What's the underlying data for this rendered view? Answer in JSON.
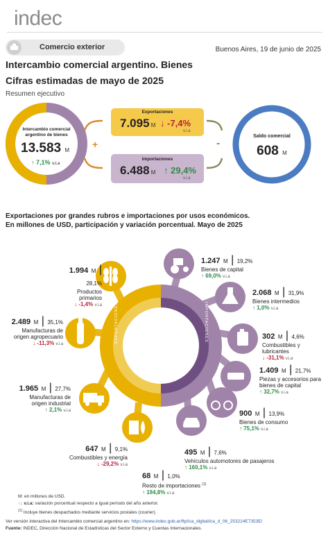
{
  "header": {
    "logo": "indec",
    "badge": "Comercio exterior",
    "date": "Buenos Aires, 19 de junio de 2025"
  },
  "report": {
    "title": "Intercambio comercial argentino. Bienes",
    "subtitle": "Cifras estimadas de mayo de 2025",
    "summary_label": "Resumen ejecutivo"
  },
  "summary": {
    "intercambio": {
      "label_1": "Intercambio comercial",
      "label_2": "argentino de bienes",
      "value": "13.583",
      "unit": "M",
      "change": "7,1%",
      "change_unit": "v.i.a"
    },
    "exportaciones": {
      "label": "Exportaciones",
      "value": "7.095",
      "unit": "M",
      "change": "-7,4%",
      "change_unit": "v.i.a"
    },
    "importaciones": {
      "label": "Importaciones",
      "value": "6.488",
      "unit": "M",
      "change": "29,4%",
      "change_unit": "v.i.a"
    },
    "saldo": {
      "label": "Saldo comercial",
      "value": "608",
      "unit": "M"
    },
    "plus": "+",
    "minus": "-"
  },
  "section": {
    "title_1": "Exportaciones por grandes rubros e importaciones por usos económicos.",
    "title_2": "En millones de USD, participación y variación porcentual. Mayo de 2025"
  },
  "ring": {
    "exports_label": "EXPORTACIONES",
    "imports_label": "IMPORTACIONES"
  },
  "exports": [
    {
      "value": "1.994",
      "share": "28,1%",
      "name_1": "Productos primarios",
      "name_2": "",
      "change": "-1,4%",
      "dir": "down",
      "icon": "wheat-icon"
    },
    {
      "value": "2.489",
      "share": "35,1%",
      "name_1": "Manufacturas de",
      "name_2": "origen agropecuario",
      "change": "-11,3%",
      "dir": "down",
      "icon": "bottle-icon"
    },
    {
      "value": "1.965",
      "share": "27,7%",
      "name_1": "Manufacturas de",
      "name_2": "origen industrial",
      "change": "2,1%",
      "dir": "up",
      "icon": "truck-icon"
    },
    {
      "value": "647",
      "share": "9,1%",
      "name_1": "Combustibles y energía",
      "name_2": "",
      "change": "-29,2%",
      "dir": "down",
      "icon": "energy-icon"
    }
  ],
  "imports": [
    {
      "value": "1.247",
      "share": "19,2%",
      "name_1": "Bienes de capital",
      "name_2": "",
      "change": "69,0%",
      "dir": "up",
      "icon": "tractor-icon"
    },
    {
      "value": "2.068",
      "share": "31,9%",
      "name_1": "Bienes intermedios",
      "name_2": "",
      "change": "1,0%",
      "dir": "up",
      "icon": "flask-icon"
    },
    {
      "value": "302",
      "share": "4,6%",
      "name_1": "Combustibles y lubricantes",
      "name_2": "",
      "change": "-31,1%",
      "dir": "down",
      "icon": "fuel-can-icon"
    },
    {
      "value": "1.409",
      "share": "21,7%",
      "name_1": "Piezas y accesorios para",
      "name_2": "bienes de capital",
      "change": "32,7%",
      "dir": "up",
      "icon": "parts-icon"
    },
    {
      "value": "900",
      "share": "13,9%",
      "name_1": "Bienes de consumo",
      "name_2": "",
      "change": "75,1%",
      "dir": "up",
      "icon": "bicycle-icon"
    },
    {
      "value": "495",
      "share": "7,6%",
      "name_1": "Vehículos automotores de pasajeros",
      "name_2": "",
      "change": "160,1%",
      "dir": "up",
      "icon": "car-icon"
    },
    {
      "value": "68",
      "share": "1,0%",
      "name_1": "Resto de importaciones",
      "name_2": "",
      "sup": "(1)",
      "change": "194,8%",
      "dir": "up",
      "icon": "none"
    }
  ],
  "unit_m": "M",
  "unit_via": "v.i.a",
  "notes": {
    "n1": "M: en millones de USD.",
    "n2_bold": "v.i.a:",
    "n2": " variación porcentual respecto a igual período del año anterior.",
    "n3_sup": "(1)",
    "n3": " Incluye bienes despachados mediante servicios postales (courier)."
  },
  "footer": {
    "link_label": "Ver versión interactiva del Intercambio comercial argentino en: ",
    "link": "https://www.indec.gob.ar/ftp/ica_digital/ica_d_06_253224E7353E/",
    "source_bold": "Fuente:",
    "source": " INDEC, Dirección Nacional de Estadísticas del Sector Externo y Cuentas Internacionales."
  },
  "colors": {
    "export": "#e8b000",
    "import": "#a083a8",
    "saldo": "#4b7bc0",
    "export_box": "#f5c94a",
    "import_box": "#c9b5cd",
    "connector_orange": "#d98c2a",
    "connector_olive": "#8a8a5a"
  }
}
